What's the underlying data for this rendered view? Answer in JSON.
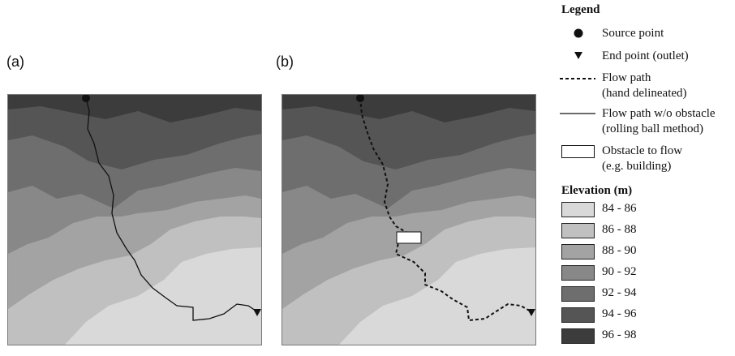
{
  "panels": [
    {
      "label": "(a)",
      "path_style": "solid"
    },
    {
      "label": "(b)",
      "path_style": "dashed"
    }
  ],
  "legend": {
    "title": "Legend",
    "items": [
      {
        "symbol": "circle-marker",
        "text": [
          "Source point"
        ]
      },
      {
        "symbol": "triangle-marker",
        "text": [
          "End point (outlet)"
        ]
      },
      {
        "symbol": "dashed-line",
        "text": [
          "Flow path",
          "(hand delineated)"
        ]
      },
      {
        "symbol": "solid-line",
        "text": [
          "Flow path w/o obstacle",
          "(rolling ball method)"
        ]
      },
      {
        "symbol": "white-rectangle",
        "text": [
          "Obstacle to flow",
          "(e.g. building)"
        ]
      }
    ],
    "elevation_title": "Elevation (m)",
    "elevation_classes": [
      {
        "label": "84 - 86",
        "color": "#d9d9d9"
      },
      {
        "label": "86 - 88",
        "color": "#c0c0c0"
      },
      {
        "label": "88 - 90",
        "color": "#a3a3a3"
      },
      {
        "label": "90 - 92",
        "color": "#888888"
      },
      {
        "label": "92 - 94",
        "color": "#6e6e6e"
      },
      {
        "label": "94 - 96",
        "color": "#555555"
      },
      {
        "label": "96 - 98",
        "color": "#3c3c3c"
      }
    ]
  }
}
